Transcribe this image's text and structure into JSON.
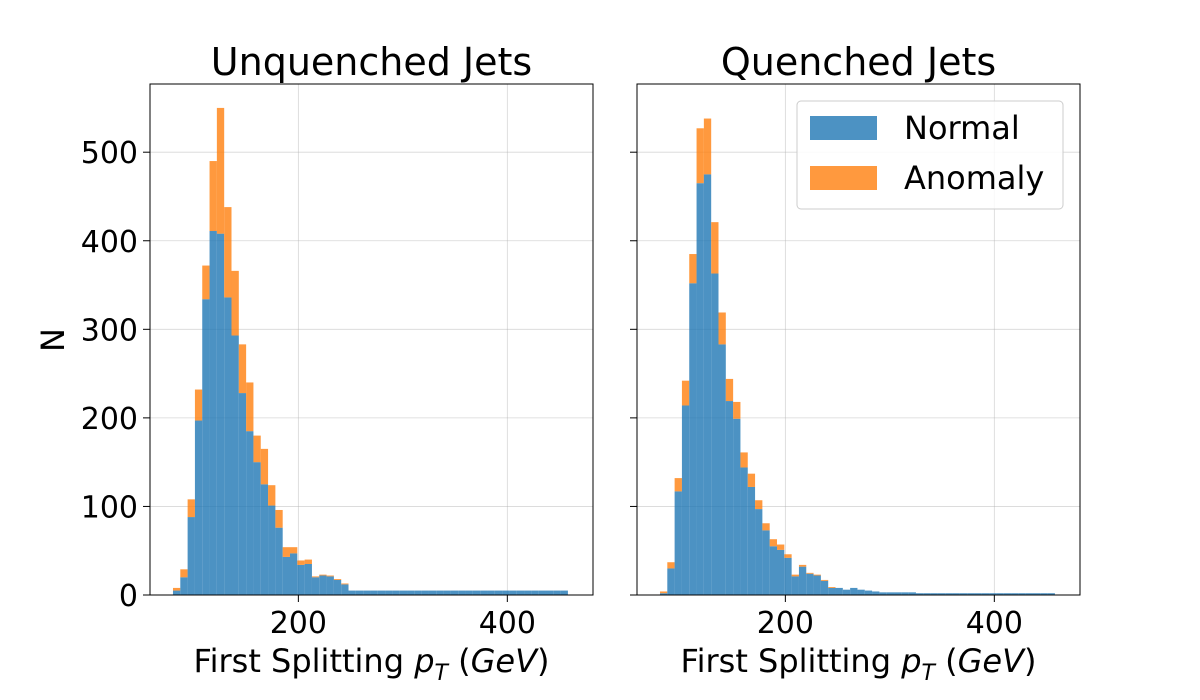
{
  "figure": {
    "ylabel": "N"
  },
  "colors": {
    "normal": "#1f77b4",
    "anomaly": "#ff7f0e",
    "bar_alpha": 0.8
  },
  "legend": {
    "placement": "top-right",
    "items": [
      "Normal",
      "Anomaly"
    ]
  },
  "chart_data": [
    {
      "type": "bar",
      "stacked": true,
      "title": "Unquenched Jets",
      "xlabel_prefix": "First Splitting ",
      "xlabel_var": "p",
      "xlabel_sub": "T",
      "xlabel_unit": "GeV",
      "ylabel": "N",
      "xlim": [
        58,
        482
      ],
      "ylim": [
        0,
        577
      ],
      "grid": true,
      "xticks": [
        200,
        400
      ],
      "yticks": [
        0,
        100,
        200,
        300,
        400,
        500
      ],
      "bin_start": 80,
      "bin_width": 7,
      "series": [
        {
          "name": "Normal",
          "values": [
            5,
            20,
            88,
            197,
            334,
            411,
            408,
            336,
            293,
            228,
            185,
            150,
            125,
            101,
            76,
            43,
            47,
            34,
            35,
            20,
            22,
            21,
            17,
            12,
            5,
            5,
            5,
            5,
            5,
            5,
            5,
            5,
            5,
            5,
            5,
            5,
            5,
            5,
            5,
            5,
            5,
            5,
            5,
            5,
            5,
            5,
            5,
            5,
            5,
            5,
            5,
            5,
            5,
            5
          ]
        },
        {
          "name": "Anomaly",
          "values": [
            3,
            9,
            20,
            35,
            38,
            79,
            142,
            102,
            73,
            55,
            55,
            30,
            40,
            23,
            20,
            11,
            7,
            5,
            5,
            1,
            1,
            1,
            1,
            1,
            0,
            0,
            0,
            0,
            0,
            0,
            0,
            0,
            0,
            0,
            0,
            0,
            0,
            0,
            0,
            0,
            0,
            0,
            0,
            0,
            0,
            0,
            0,
            0,
            0,
            0,
            0,
            0,
            0,
            0
          ]
        }
      ]
    },
    {
      "type": "bar",
      "stacked": true,
      "title": "Quenched Jets",
      "xlabel_prefix": "First Splitting ",
      "xlabel_var": "p",
      "xlabel_sub": "T",
      "xlabel_unit": "GeV",
      "ylabel": "N",
      "xlim": [
        58,
        482
      ],
      "ylim": [
        0,
        577
      ],
      "grid": true,
      "xticks": [
        200,
        400
      ],
      "yticks": [
        0,
        100,
        200,
        300,
        400,
        500
      ],
      "bin_start": 80,
      "bin_width": 7,
      "series": [
        {
          "name": "Normal",
          "values": [
            2,
            30,
            117,
            214,
            352,
            465,
            475,
            363,
            283,
            219,
            199,
            144,
            122,
            97,
            73,
            55,
            51,
            42,
            21,
            32,
            24,
            22,
            16,
            8,
            8,
            6,
            8,
            6,
            5,
            4,
            3,
            3,
            3,
            3,
            3,
            2,
            2,
            2,
            2,
            2,
            2,
            2,
            2,
            2,
            2,
            2,
            2,
            2,
            2,
            2,
            2,
            2,
            2,
            2
          ]
        },
        {
          "name": "Anomaly",
          "values": [
            2,
            7,
            15,
            28,
            33,
            62,
            63,
            58,
            36,
            25,
            19,
            17,
            15,
            10,
            8,
            8,
            6,
            4,
            2,
            2,
            1,
            1,
            1,
            1,
            0,
            0,
            0,
            0,
            0,
            0,
            0,
            0,
            0,
            0,
            0,
            0,
            0,
            0,
            0,
            0,
            0,
            0,
            0,
            0,
            0,
            0,
            0,
            0,
            0,
            0,
            0,
            0,
            0,
            0
          ]
        }
      ]
    }
  ]
}
